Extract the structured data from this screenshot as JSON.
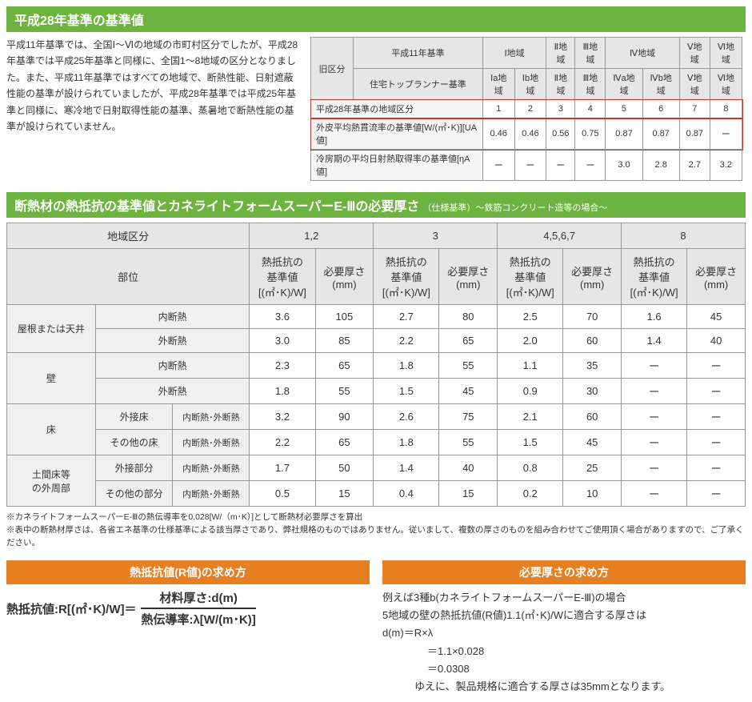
{
  "colors": {
    "green": "#6cb33f",
    "orange": "#e67e22",
    "red": "#c0392b"
  },
  "section1": {
    "title": "平成28年基準の基準値",
    "intro": "平成11年基準では、全国Ⅰ～Ⅵの地域の市町村区分でしたが、平成28年基準では平成25年基準と同様に、全国1～8地域の区分となりました。また、平成11年基準ではすべての地域で、断熱性能、日射遮蔽性能の基準が設けられていましたが、平成28年基準では平成25年基準と同様に、寒冷地で日射取得性能の基準、蒸暑地で断熱性能の基準が設けられていません。"
  },
  "table1": {
    "hdr_old": "旧区分",
    "hdr_h11": "平成11年基準",
    "hdr_areas": [
      "Ⅰ地域",
      "Ⅱ地域",
      "Ⅲ地域",
      "Ⅳ地域",
      "Ⅴ地域",
      "Ⅵ地域"
    ],
    "hdr_top": "住宅トップランナー基準",
    "hdr_sub": [
      "Ⅰa地域",
      "Ⅰb地域",
      "Ⅱ地域",
      "Ⅲ地域",
      "Ⅳa地域",
      "Ⅳb地域",
      "Ⅴ地域",
      "Ⅵ地域"
    ],
    "rows": [
      {
        "label": "平成28年基準の地域区分",
        "vals": [
          "1",
          "2",
          "3",
          "4",
          "5",
          "6",
          "7",
          "8"
        ]
      },
      {
        "label": "外皮平均熱貫流率の基準値[W/(㎡･K)][UA値]",
        "vals": [
          "0.46",
          "0.46",
          "0.56",
          "0.75",
          "0.87",
          "0.87",
          "0.87",
          "ー"
        ]
      },
      {
        "label": "冷房期の平均日射熱取得率の基準値[ηA値]",
        "vals": [
          "ー",
          "ー",
          "ー",
          "ー",
          "3.0",
          "2.8",
          "2.7",
          "3.2"
        ]
      }
    ]
  },
  "section2": {
    "title": "断熱材の熱抵抗の基準値とカネライトフォームスーパーE-Ⅲの必要厚さ",
    "subtitle": "（仕様基準）～鉄筋コンクリート造等の場合～"
  },
  "table2": {
    "hdr_region": "地域区分",
    "hdr_part": "部位",
    "groups": [
      "1,2",
      "3",
      "4,5,6,7",
      "8"
    ],
    "colA": "熱抵抗の\n基準値\n[(㎡･K)/W]",
    "colB": "必要厚さ\n(mm)",
    "rows": [
      {
        "g1": "屋根または天井",
        "g1rs": 2,
        "g2": "内断熱",
        "v": [
          "3.6",
          "105",
          "2.7",
          "80",
          "2.5",
          "70",
          "1.6",
          "45"
        ]
      },
      {
        "g2": "外断熱",
        "v": [
          "3.0",
          "85",
          "2.2",
          "65",
          "2.0",
          "60",
          "1.4",
          "40"
        ]
      },
      {
        "g1": "壁",
        "g1rs": 2,
        "g2": "内断熱",
        "v": [
          "2.3",
          "65",
          "1.8",
          "55",
          "1.1",
          "35",
          "ー",
          "ー"
        ]
      },
      {
        "g2": "外断熱",
        "v": [
          "1.8",
          "55",
          "1.5",
          "45",
          "0.9",
          "30",
          "ー",
          "ー"
        ]
      },
      {
        "g1": "床",
        "g1rs": 2,
        "g2": "外接床",
        "g3": "内断熱･外断熱",
        "v": [
          "3.2",
          "90",
          "2.6",
          "75",
          "2.1",
          "60",
          "ー",
          "ー"
        ]
      },
      {
        "g2": "その他の床",
        "g3": "内断熱･外断熱",
        "v": [
          "2.2",
          "65",
          "1.8",
          "55",
          "1.5",
          "45",
          "ー",
          "ー"
        ]
      },
      {
        "g1": "土間床等\nの外周部",
        "g1rs": 2,
        "g2": "外接部分",
        "g3": "内断熱･外断熱",
        "v": [
          "1.7",
          "50",
          "1.4",
          "40",
          "0.8",
          "25",
          "ー",
          "ー"
        ]
      },
      {
        "g2": "その他の部分",
        "g3": "内断熱･外断熱",
        "v": [
          "0.5",
          "15",
          "0.4",
          "15",
          "0.2",
          "10",
          "ー",
          "ー"
        ]
      }
    ]
  },
  "notes": [
    "※カネライトフォームスーパーE-Ⅲの熱伝導率を0.028[W/（m･K）]として断熱材必要厚さを算出",
    "※表中の断熱材厚さは、各省エネ基準の仕様基準による該当厚さであり、弊社規格のものではありません。従いまして、複数の厚さのものを組み合わせてご使用頂く場合がありますので、ご了承ください。"
  ],
  "bottom": {
    "left_title": "熱抵抗値(R値)の求め方",
    "lhs": "熱抵抗値:R[(㎡･K)/W]＝",
    "num": "材料厚さ:d(m)",
    "den": "熱伝導率:λ[W/(m･K)]",
    "right_title": "必要厚さの求め方",
    "ex1": "例えば3種b(カネライトフォームスーパーE-Ⅲ)の場合",
    "ex2": "5地域の壁の熱抵抗値(R値)1.1(㎡･K)/Wに適合する厚さは",
    "ex3": "d(m)＝R×λ",
    "ex4": "＝1.1×0.028",
    "ex5": "＝0.0308",
    "ex6": "ゆえに、製品規格に適合する厚さは35mmとなります。"
  }
}
